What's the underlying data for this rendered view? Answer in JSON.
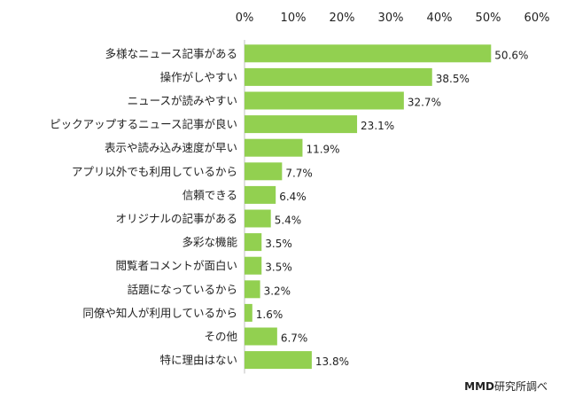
{
  "chart_data": {
    "type": "bar",
    "orientation": "horizontal",
    "xlim": [
      0,
      60
    ],
    "ticks": [
      "0%",
      "10%",
      "20%",
      "30%",
      "40%",
      "50%",
      "60%"
    ],
    "tick_values": [
      0,
      10,
      20,
      30,
      40,
      50,
      60
    ],
    "categories": [
      "多様なニュース記事がある",
      "操作がしやすい",
      "ニュースが読みやすい",
      "ピックアップするニュース記事が良い",
      "表示や読み込み速度が早い",
      "アプリ以外でも利用しているから",
      "信頼できる",
      "オリジナルの記事がある",
      "多彩な機能",
      "閲覧者コメントが面白い",
      "話題になっているから",
      "同僚や知人が利用しているから",
      "その他",
      "特に理由はない"
    ],
    "values": [
      50.6,
      38.5,
      32.7,
      23.1,
      11.9,
      7.7,
      6.4,
      5.4,
      3.5,
      3.5,
      3.2,
      1.6,
      6.7,
      13.8
    ],
    "value_labels": [
      "50.6%",
      "38.5%",
      "32.7%",
      "23.1%",
      "11.9%",
      "7.7%",
      "6.4%",
      "5.4%",
      "3.5%",
      "3.5%",
      "3.2%",
      "1.6%",
      "6.7%",
      "13.8%"
    ],
    "bar_color": "#92d050",
    "axis_position": "top",
    "grid": false
  },
  "source": {
    "brand": "MMD",
    "text": "研究所調べ"
  }
}
